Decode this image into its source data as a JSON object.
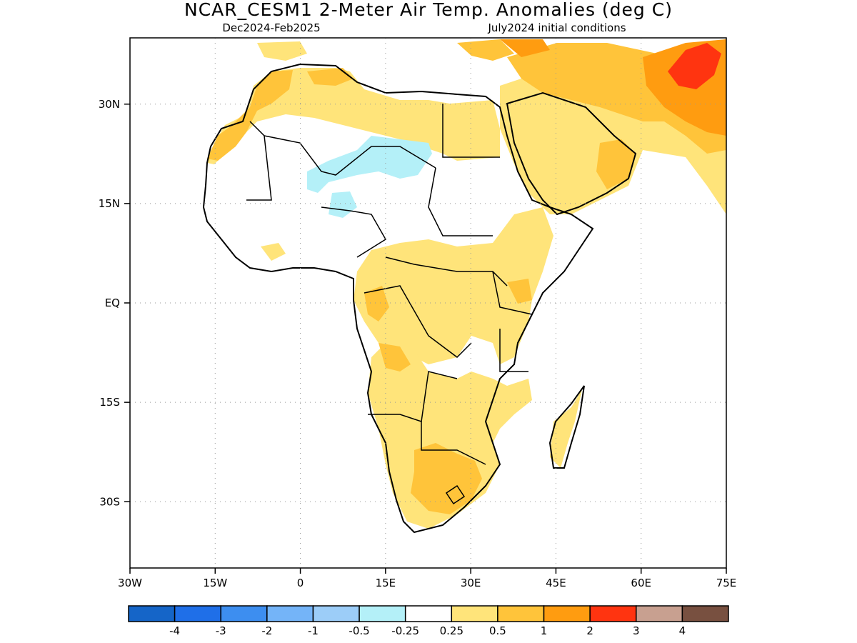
{
  "header": {
    "title": "NCAR_CESM1 2-Meter Air Temp. Anomalies (deg C)",
    "period": "Dec2024-Feb2025",
    "initial_conditions": "July2024 initial conditions"
  },
  "map": {
    "region": "Africa",
    "projection": "lat-lon",
    "lon_range": [
      -30,
      75
    ],
    "lat_range": [
      -40,
      40
    ],
    "grid": "dotted",
    "lat_ticks": [
      {
        "value": 30,
        "label": "30N"
      },
      {
        "value": 15,
        "label": "15N"
      },
      {
        "value": 0,
        "label": "EQ"
      },
      {
        "value": -15,
        "label": "15S"
      },
      {
        "value": -30,
        "label": "30S"
      }
    ],
    "lon_ticks": [
      {
        "value": -30,
        "label": "30W"
      },
      {
        "value": -15,
        "label": "15W"
      },
      {
        "value": 0,
        "label": "0"
      },
      {
        "value": 15,
        "label": "15E"
      },
      {
        "value": 30,
        "label": "30E"
      },
      {
        "value": 45,
        "label": "45E"
      },
      {
        "value": 60,
        "label": "60E"
      },
      {
        "value": 75,
        "label": "75E"
      }
    ]
  },
  "colorbar": {
    "colors": [
      "#1565c8",
      "#1f6fe8",
      "#3d8ef0",
      "#74b4f8",
      "#9ccdf8",
      "#b4f0f8",
      "#ffffff",
      "#ffe47a",
      "#ffc43a",
      "#ff9c10",
      "#ff3410",
      "#c8a090",
      "#785040"
    ],
    "labels": [
      "-4",
      "-3",
      "-2",
      "-1",
      "-0.5",
      "-0.25",
      "0.25",
      "0.5",
      "1",
      "2",
      "3",
      "4"
    ]
  },
  "legend_colors": {
    "anomaly_0_25_to_0_5": "#ffe47a",
    "anomaly_0_5_to_1": "#ffc43a",
    "anomaly_1_to_2": "#ff9c10",
    "anomaly_2_to_3": "#ff3410",
    "anomaly_neg_0_5_to_neg_0_25": "#b4f0f8"
  }
}
